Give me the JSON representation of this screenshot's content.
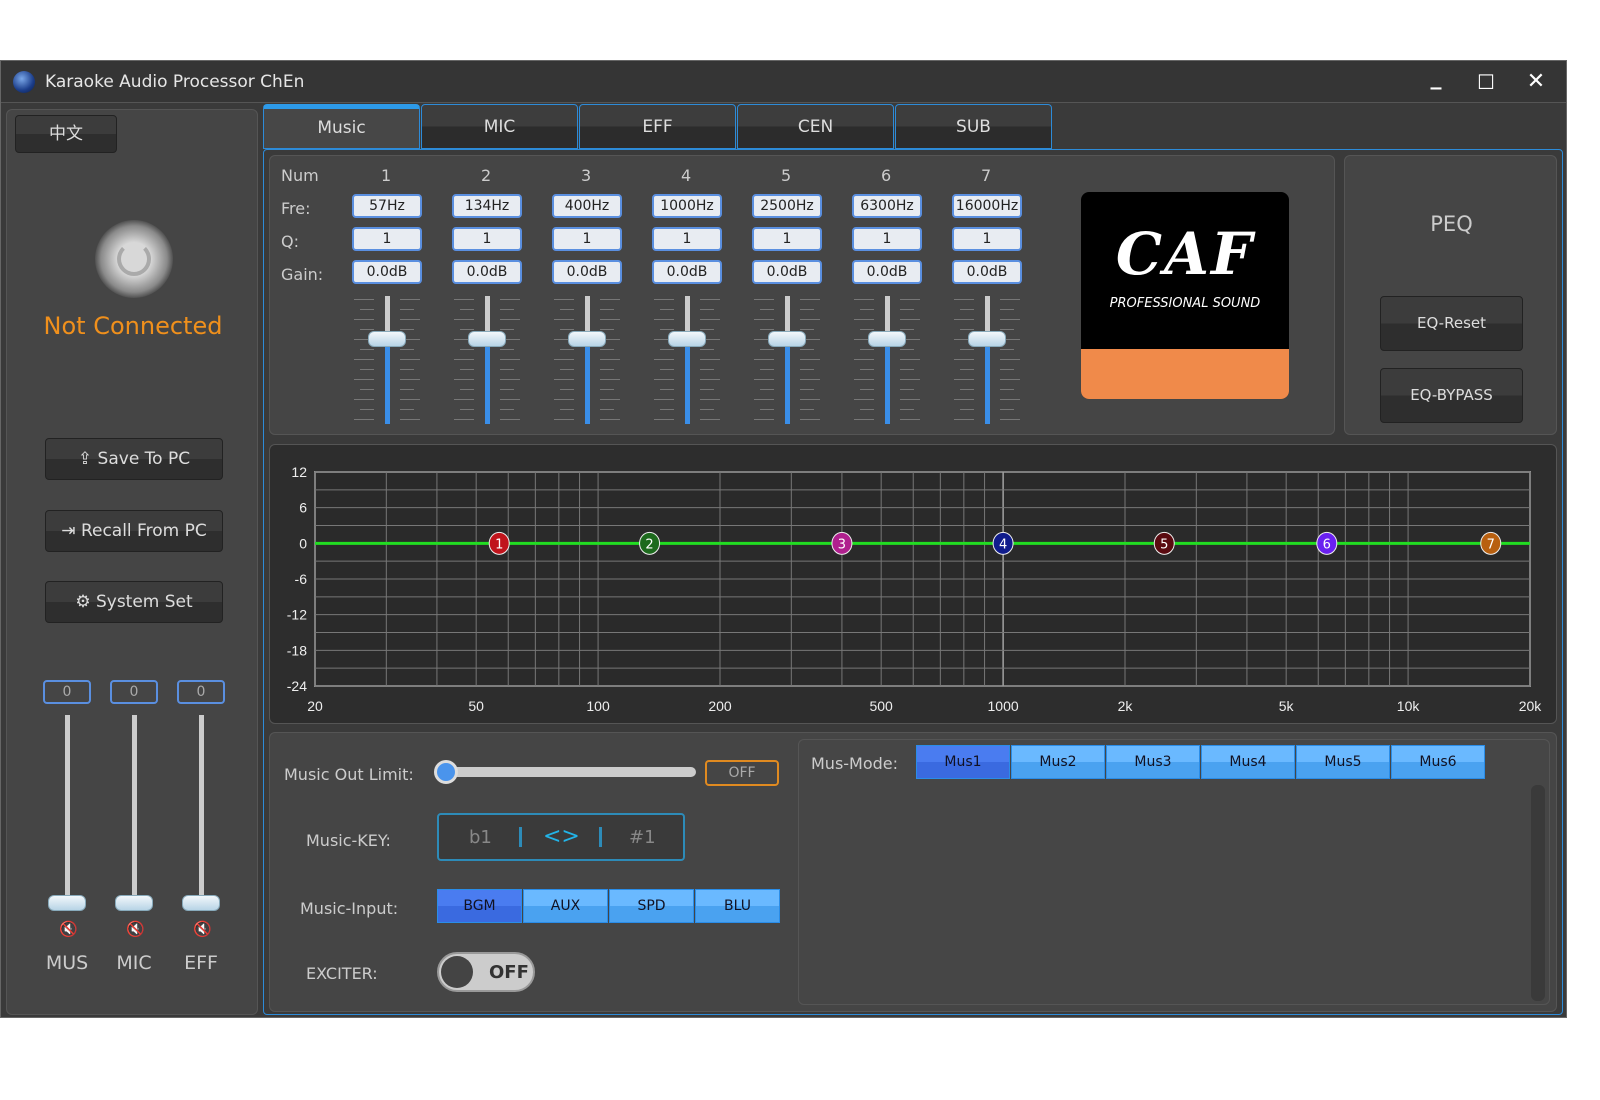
{
  "window": {
    "title": "Karaoke Audio Processor ChEn",
    "minimize": "_",
    "maximize": "☐",
    "close": "✕"
  },
  "sidebar": {
    "language_button": "中文",
    "status": "Not Connected",
    "status_color": "#f0901c",
    "save_label": "Save To PC",
    "recall_label": "Recall From PC",
    "system_label": "System Set",
    "channels": [
      {
        "label": "MUS",
        "value": "0",
        "level": 0
      },
      {
        "label": "MIC",
        "value": "0",
        "level": 0
      },
      {
        "label": "EFF",
        "value": "0",
        "level": 0
      }
    ]
  },
  "tabs": [
    {
      "label": "Music",
      "active": true
    },
    {
      "label": "MIC"
    },
    {
      "label": "EFF"
    },
    {
      "label": "CEN"
    },
    {
      "label": "SUB"
    }
  ],
  "eq": {
    "row_labels": {
      "num": "Num",
      "fre": "Fre:",
      "q": "Q:",
      "gain": "Gain:"
    },
    "bands": [
      {
        "num": "1",
        "fre": "57Hz",
        "q": "1",
        "gain": "0.0dB",
        "freq": 57,
        "gain_db": 0,
        "color": "#c0141c"
      },
      {
        "num": "2",
        "fre": "134Hz",
        "q": "1",
        "gain": "0.0dB",
        "freq": 134,
        "gain_db": 0,
        "color": "#1d6a1d"
      },
      {
        "num": "3",
        "fre": "400Hz",
        "q": "1",
        "gain": "0.0dB",
        "freq": 400,
        "gain_db": 0,
        "color": "#b0208e"
      },
      {
        "num": "4",
        "fre": "1000Hz",
        "q": "1",
        "gain": "0.0dB",
        "freq": 1000,
        "gain_db": 0,
        "color": "#101c8c"
      },
      {
        "num": "5",
        "fre": "2500Hz",
        "q": "1",
        "gain": "0.0dB",
        "freq": 2500,
        "gain_db": 0,
        "color": "#5a0a10"
      },
      {
        "num": "6",
        "fre": "6300Hz",
        "q": "1",
        "gain": "0.0dB",
        "freq": 6300,
        "gain_db": 0,
        "color": "#6a20f0"
      },
      {
        "num": "7",
        "fre": "16000Hz",
        "q": "1",
        "gain": "0.0dB",
        "freq": 16000,
        "gain_db": 0,
        "color": "#b86010"
      }
    ],
    "gain_range": [
      -24,
      12
    ]
  },
  "logo": {
    "brand": "CAF",
    "tagline": "PROFESSIONAL SOUND",
    "accent": "#f08a4a"
  },
  "peq": {
    "title": "PEQ",
    "reset": "EQ-Reset",
    "bypass": "EQ-BYPASS"
  },
  "chart_data": {
    "type": "line",
    "x_scale": "log",
    "xlim": [
      20,
      20000
    ],
    "ylim": [
      -24,
      12
    ],
    "x_ticks": [
      {
        "v": 20,
        "t": "20"
      },
      {
        "v": 50,
        "t": "50"
      },
      {
        "v": 100,
        "t": "100"
      },
      {
        "v": 200,
        "t": "200"
      },
      {
        "v": 500,
        "t": "500"
      },
      {
        "v": 1000,
        "t": "1000"
      },
      {
        "v": 2000,
        "t": "2k"
      },
      {
        "v": 5000,
        "t": "5k"
      },
      {
        "v": 10000,
        "t": "10k"
      },
      {
        "v": 20000,
        "t": "20k"
      }
    ],
    "y_ticks": [
      12,
      6,
      0,
      -6,
      -12,
      -18,
      -24
    ],
    "grid": true,
    "line_color": "#22dd22",
    "series": [
      {
        "x": [
          20,
          20000
        ],
        "y": [
          0,
          0
        ]
      }
    ]
  },
  "music": {
    "out_limit_label": "Music Out Limit:",
    "out_limit_value": 0,
    "out_limit_state": "OFF",
    "key_label": "Music-KEY:",
    "key_down": "b1",
    "key_center": "<>",
    "key_up": "#1",
    "input_label": "Music-Input:",
    "inputs": [
      {
        "label": "BGM",
        "active": true
      },
      {
        "label": "AUX"
      },
      {
        "label": "SPD"
      },
      {
        "label": "BLU"
      }
    ],
    "exciter_label": "EXCITER:",
    "exciter_state": "OFF",
    "mode_label": "Mus-Mode:",
    "modes": [
      {
        "label": "Mus1",
        "active": true
      },
      {
        "label": "Mus2"
      },
      {
        "label": "Mus3"
      },
      {
        "label": "Mus4"
      },
      {
        "label": "Mus5"
      },
      {
        "label": "Mus6"
      }
    ]
  }
}
